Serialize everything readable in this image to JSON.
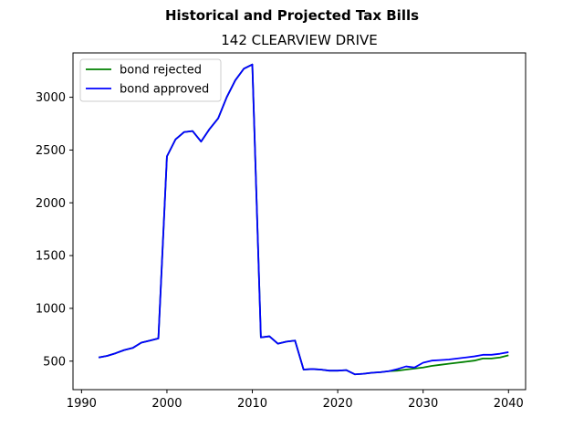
{
  "chart_data": {
    "type": "line",
    "suptitle": "Historical and Projected Tax Bills",
    "title": "142 CLEARVIEW DRIVE",
    "xlabel": "",
    "ylabel": "",
    "xlim": [
      1989,
      2042
    ],
    "ylim": [
      230,
      3420
    ],
    "xticks": [
      1990,
      2000,
      2010,
      2020,
      2030,
      2040
    ],
    "yticks": [
      500,
      1000,
      1500,
      2000,
      2500,
      3000
    ],
    "grid": false,
    "legend_position": "upper left",
    "series": [
      {
        "name": "bond rejected",
        "color": "#008000",
        "x": [
          1992,
          1993,
          1994,
          1995,
          1996,
          1997,
          1998,
          1999,
          2000,
          2001,
          2002,
          2003,
          2004,
          2005,
          2006,
          2007,
          2008,
          2009,
          2010,
          2011,
          2012,
          2013,
          2014,
          2015,
          2016,
          2017,
          2018,
          2019,
          2020,
          2021,
          2022,
          2023,
          2024,
          2025,
          2026,
          2027,
          2028,
          2029,
          2030,
          2031,
          2032,
          2033,
          2034,
          2035,
          2036,
          2037,
          2038,
          2039,
          2040
        ],
        "y": [
          535,
          550,
          575,
          605,
          625,
          675,
          695,
          715,
          2440,
          2600,
          2670,
          2680,
          2580,
          2700,
          2800,
          3000,
          3160,
          3270,
          3310,
          725,
          735,
          665,
          685,
          695,
          420,
          425,
          420,
          410,
          410,
          415,
          375,
          380,
          390,
          395,
          405,
          410,
          420,
          430,
          440,
          455,
          465,
          475,
          485,
          495,
          505,
          525,
          525,
          535,
          555
        ]
      },
      {
        "name": "bond approved",
        "color": "#0000ff",
        "x": [
          1992,
          1993,
          1994,
          1995,
          1996,
          1997,
          1998,
          1999,
          2000,
          2001,
          2002,
          2003,
          2004,
          2005,
          2006,
          2007,
          2008,
          2009,
          2010,
          2011,
          2012,
          2013,
          2014,
          2015,
          2016,
          2017,
          2018,
          2019,
          2020,
          2021,
          2022,
          2023,
          2024,
          2025,
          2026,
          2027,
          2028,
          2029,
          2030,
          2031,
          2032,
          2033,
          2034,
          2035,
          2036,
          2037,
          2038,
          2039,
          2040
        ],
        "y": [
          535,
          550,
          575,
          605,
          625,
          675,
          695,
          715,
          2440,
          2600,
          2670,
          2680,
          2580,
          2700,
          2800,
          3000,
          3160,
          3270,
          3310,
          725,
          735,
          665,
          685,
          695,
          420,
          425,
          420,
          410,
          410,
          415,
          375,
          380,
          390,
          395,
          405,
          425,
          450,
          440,
          485,
          505,
          510,
          515,
          525,
          535,
          545,
          560,
          560,
          570,
          585
        ]
      }
    ]
  }
}
